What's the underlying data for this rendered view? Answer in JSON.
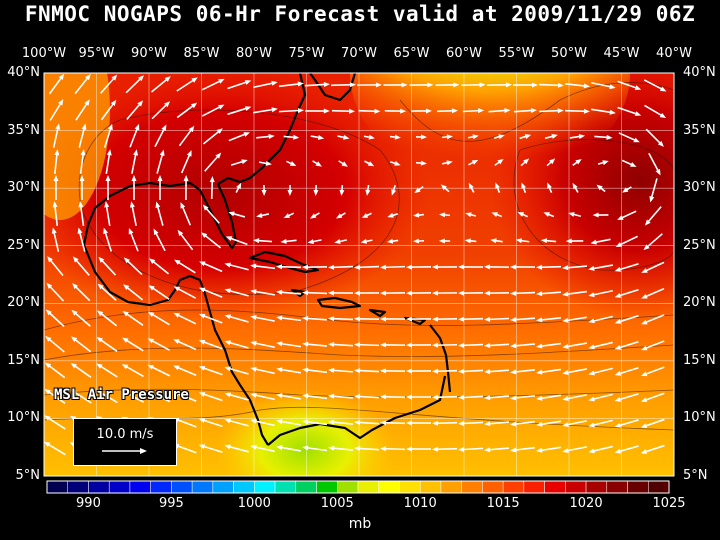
{
  "title": "FNMOC NOGAPS 06-Hr Forecast valid at 2009/11/29 06Z",
  "lon_labels": [
    "100°W",
    "95°W",
    "90°W",
    "85°W",
    "80°W",
    "75°W",
    "70°W",
    "65°W",
    "60°W",
    "55°W",
    "50°W",
    "45°W",
    "40°W"
  ],
  "lat_labels": [
    "40°N",
    "35°N",
    "30°N",
    "25°N",
    "20°N",
    "15°N",
    "10°N",
    "5°N"
  ],
  "field_label": "MSL Air Pressure",
  "wind_key": {
    "label": "10.0 m/s"
  },
  "colorbar": {
    "units": "mb",
    "tick_labels": [
      "990",
      "995",
      "1000",
      "1005",
      "1010",
      "1015",
      "1020",
      "1025"
    ],
    "colors": [
      "#000050",
      "#000078",
      "#0000a0",
      "#0000c8",
      "#0000f0",
      "#0028ff",
      "#0050ff",
      "#0078ff",
      "#00a0ff",
      "#00c8ff",
      "#00f0ff",
      "#00e0b0",
      "#00d060",
      "#00c800",
      "#a0e000",
      "#e8f000",
      "#ffff00",
      "#ffe000",
      "#ffc000",
      "#ffa000",
      "#ff8000",
      "#ff6000",
      "#ff4000",
      "#f82000",
      "#e80000",
      "#c80000",
      "#a80000",
      "#880000",
      "#680000",
      "#500000"
    ]
  }
}
